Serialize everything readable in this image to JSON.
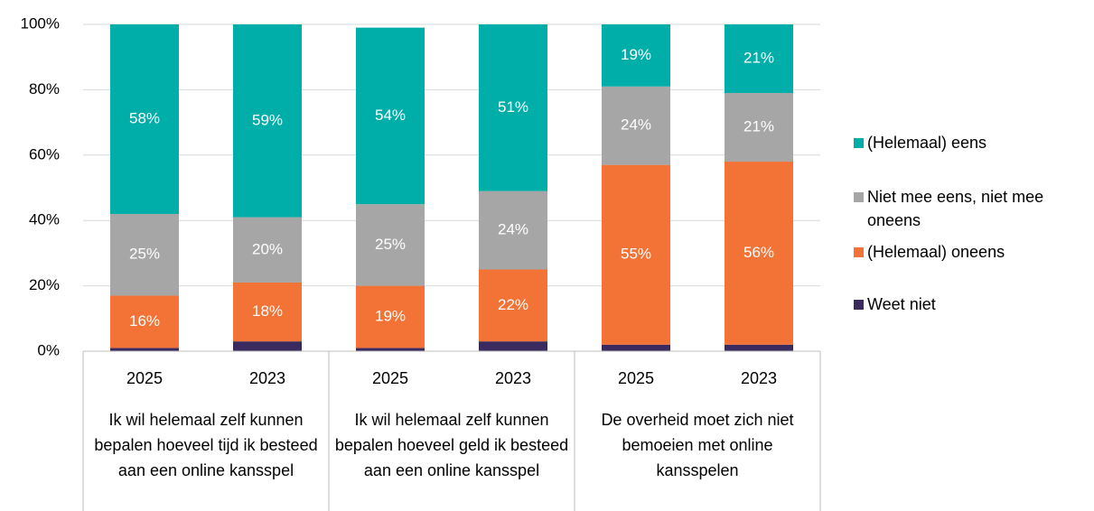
{
  "chart_data": {
    "type": "stacked_bar",
    "categories": [
      "2025",
      "2023",
      "2025",
      "2023",
      "2025",
      "2023"
    ],
    "groups": [
      "Ik wil helemaal zelf kunnen bepalen hoeveel tijd ik besteed aan een online kansspel",
      "Ik wil helemaal zelf kunnen bepalen hoeveel geld ik besteed aan een online kansspel",
      "De overheid moet zich niet bemoeien met online kansspelen"
    ],
    "series": [
      {
        "name": "Weet niet",
        "color": "#3b2a5e",
        "values": [
          1,
          3,
          1,
          3,
          2,
          2
        ]
      },
      {
        "name": "(Helemaal) oneens",
        "color": "#f37236",
        "values": [
          16,
          18,
          19,
          22,
          55,
          56
        ],
        "value_labels": [
          "16%",
          "18%",
          "19%",
          "22%",
          "55%",
          "56%"
        ]
      },
      {
        "name": "Niet mee eens, niet mee oneens",
        "color": "#a6a6a6",
        "values": [
          25,
          20,
          25,
          24,
          24,
          21
        ],
        "value_labels": [
          "25%",
          "20%",
          "25%",
          "24%",
          "24%",
          "21%"
        ]
      },
      {
        "name": "(Helemaal) eens",
        "color": "#00aea9",
        "values": [
          58,
          59,
          54,
          51,
          19,
          21
        ],
        "value_labels": [
          "58%",
          "59%",
          "54%",
          "51%",
          "19%",
          "21%"
        ]
      }
    ],
    "ylim": [
      0,
      100
    ],
    "yticks": [
      {
        "value": 0,
        "label": "0%"
      },
      {
        "value": 20,
        "label": "20%"
      },
      {
        "value": 40,
        "label": "40%"
      },
      {
        "value": 60,
        "label": "60%"
      },
      {
        "value": 80,
        "label": "80%"
      },
      {
        "value": 100,
        "label": "100%"
      }
    ],
    "grid": true,
    "legend": "right"
  }
}
